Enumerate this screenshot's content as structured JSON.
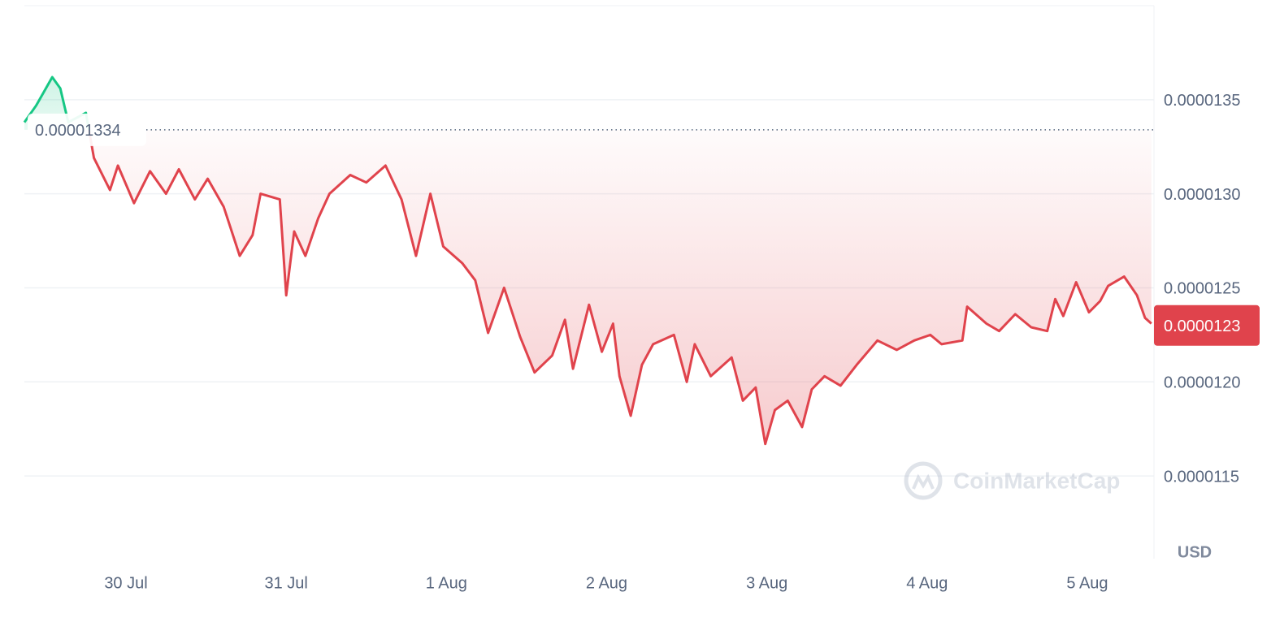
{
  "chart_data": {
    "type": "line",
    "x": [
      0.366,
      0.44,
      0.54,
      0.59,
      0.64,
      0.75,
      0.8,
      0.9,
      0.95,
      1.05,
      1.15,
      1.25,
      1.33,
      1.43,
      1.51,
      1.61,
      1.71,
      1.79,
      1.84,
      1.96,
      2.0,
      2.05,
      2.12,
      2.2,
      2.27,
      2.4,
      2.5,
      2.62,
      2.72,
      2.81,
      2.9,
      2.98,
      3.1,
      3.18,
      3.26,
      3.36,
      3.46,
      3.55,
      3.66,
      3.74,
      3.79,
      3.89,
      3.97,
      4.04,
      4.08,
      4.15,
      4.22,
      4.29,
      4.42,
      4.5,
      4.55,
      4.65,
      4.78,
      4.85,
      4.93,
      4.99,
      5.05,
      5.13,
      5.22,
      5.28,
      5.36,
      5.46,
      5.56,
      5.69,
      5.81,
      5.92,
      6.02,
      6.09,
      6.22,
      6.25,
      6.37,
      6.45,
      6.55,
      6.65,
      6.75,
      6.8,
      6.85,
      6.93,
      7.01,
      7.08,
      7.13,
      7.23,
      7.31,
      7.36,
      7.4
    ],
    "series": [
      {
        "color": "#e0434c",
        "up_color": "#16c784",
        "values": [
          1.338e-05,
          1.347e-05,
          1.362e-05,
          1.356e-05,
          1.338e-05,
          1.343e-05,
          1.319e-05,
          1.302e-05,
          1.315e-05,
          1.295e-05,
          1.312e-05,
          1.3e-05,
          1.313e-05,
          1.297e-05,
          1.308e-05,
          1.293e-05,
          1.267e-05,
          1.278e-05,
          1.3e-05,
          1.297e-05,
          1.246e-05,
          1.28e-05,
          1.267e-05,
          1.287e-05,
          1.3e-05,
          1.31e-05,
          1.306e-05,
          1.315e-05,
          1.297e-05,
          1.267e-05,
          1.3e-05,
          1.272e-05,
          1.263e-05,
          1.254e-05,
          1.226e-05,
          1.25e-05,
          1.224e-05,
          1.205e-05,
          1.214e-05,
          1.233e-05,
          1.207e-05,
          1.241e-05,
          1.216e-05,
          1.231e-05,
          1.203e-05,
          1.182e-05,
          1.209e-05,
          1.22e-05,
          1.225e-05,
          1.2e-05,
          1.22e-05,
          1.203e-05,
          1.213e-05,
          1.19e-05,
          1.197e-05,
          1.167e-05,
          1.185e-05,
          1.19e-05,
          1.176e-05,
          1.196e-05,
          1.203e-05,
          1.198e-05,
          1.209e-05,
          1.222e-05,
          1.217e-05,
          1.222e-05,
          1.225e-05,
          1.22e-05,
          1.222e-05,
          1.24e-05,
          1.231e-05,
          1.227e-05,
          1.236e-05,
          1.229e-05,
          1.227e-05,
          1.244e-05,
          1.235e-05,
          1.253e-05,
          1.237e-05,
          1.243e-05,
          1.251e-05,
          1.256e-05,
          1.246e-05,
          1.234e-05,
          1.231e-05
        ]
      }
    ],
    "reference": 1.334e-05,
    "current_price": 1.23e-05,
    "ylim": [
      1.106e-05,
      1.4e-05
    ],
    "yticks": [
      1.15e-05,
      {
        "value": 1.2e-05,
        "label": "0.0000120"
      },
      1.25e-05,
      {
        "value": 1.3e-05,
        "label": "0.0000130"
      },
      1.35e-05
    ],
    "xlim": [
      0.366,
      7.416
    ],
    "xticks": [
      {
        "value": 1,
        "label": "30 Jul"
      },
      {
        "value": 2,
        "label": "31 Jul"
      },
      {
        "value": 3,
        "label": "1 Aug"
      },
      {
        "value": 4,
        "label": "2 Aug"
      },
      {
        "value": 5,
        "label": "3 Aug"
      },
      {
        "value": 6,
        "label": "4 Aug"
      },
      {
        "value": 7,
        "label": "5 Aug"
      }
    ],
    "currency": "USD",
    "watermark": "CoinMarketCap",
    "grid": true
  }
}
